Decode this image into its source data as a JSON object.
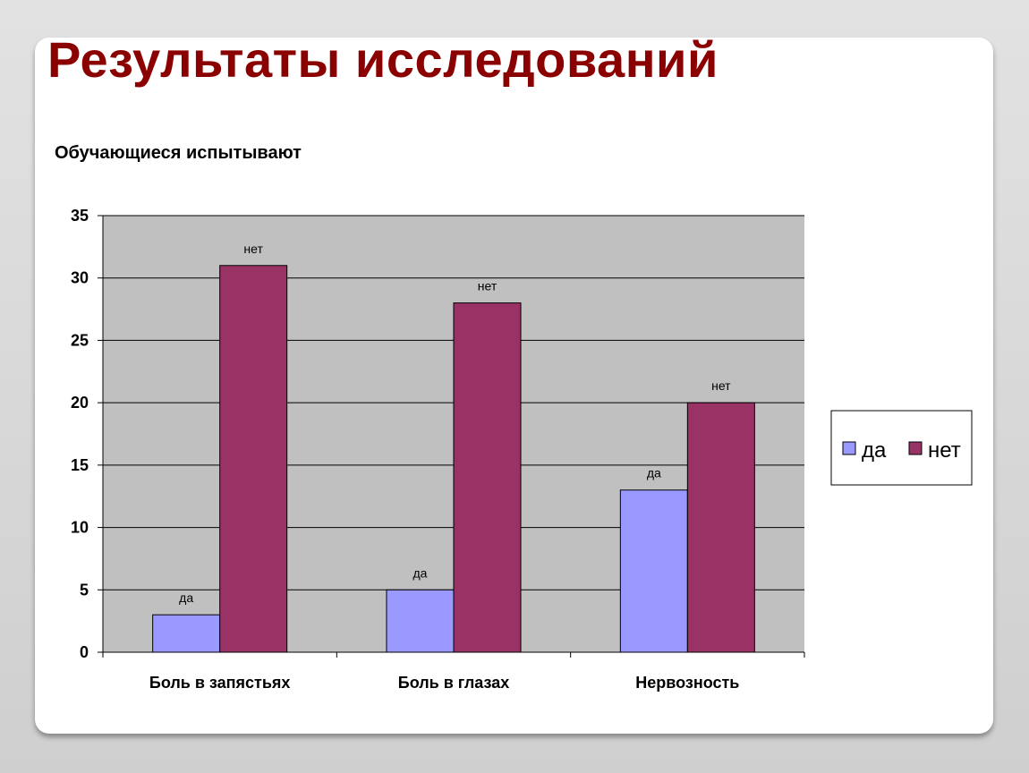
{
  "slide": {
    "title": "Результаты исследований"
  },
  "colors": {
    "da": "#9999ff",
    "net": "#993366",
    "plot_bg": "#c0c0c0",
    "title": "#8b0000"
  },
  "chart_data": {
    "type": "bar",
    "title": "Обучающиеся испытывают",
    "xlabel": "",
    "ylabel": "",
    "categories": [
      "Боль в запястьях",
      "Боль в глазах",
      "Нервозность"
    ],
    "series": [
      {
        "name": "да",
        "values": [
          3,
          5,
          13
        ],
        "color": "#9999ff"
      },
      {
        "name": "нет",
        "values": [
          31,
          28,
          20
        ],
        "color": "#993366"
      }
    ],
    "ylim": [
      0,
      35
    ],
    "yticks": [
      0,
      5,
      10,
      15,
      20,
      25,
      30,
      35
    ],
    "data_labels": [
      [
        "да",
        "да",
        "да"
      ],
      [
        "нет",
        "нет",
        "нет"
      ]
    ],
    "grid": true,
    "legend": "right"
  }
}
